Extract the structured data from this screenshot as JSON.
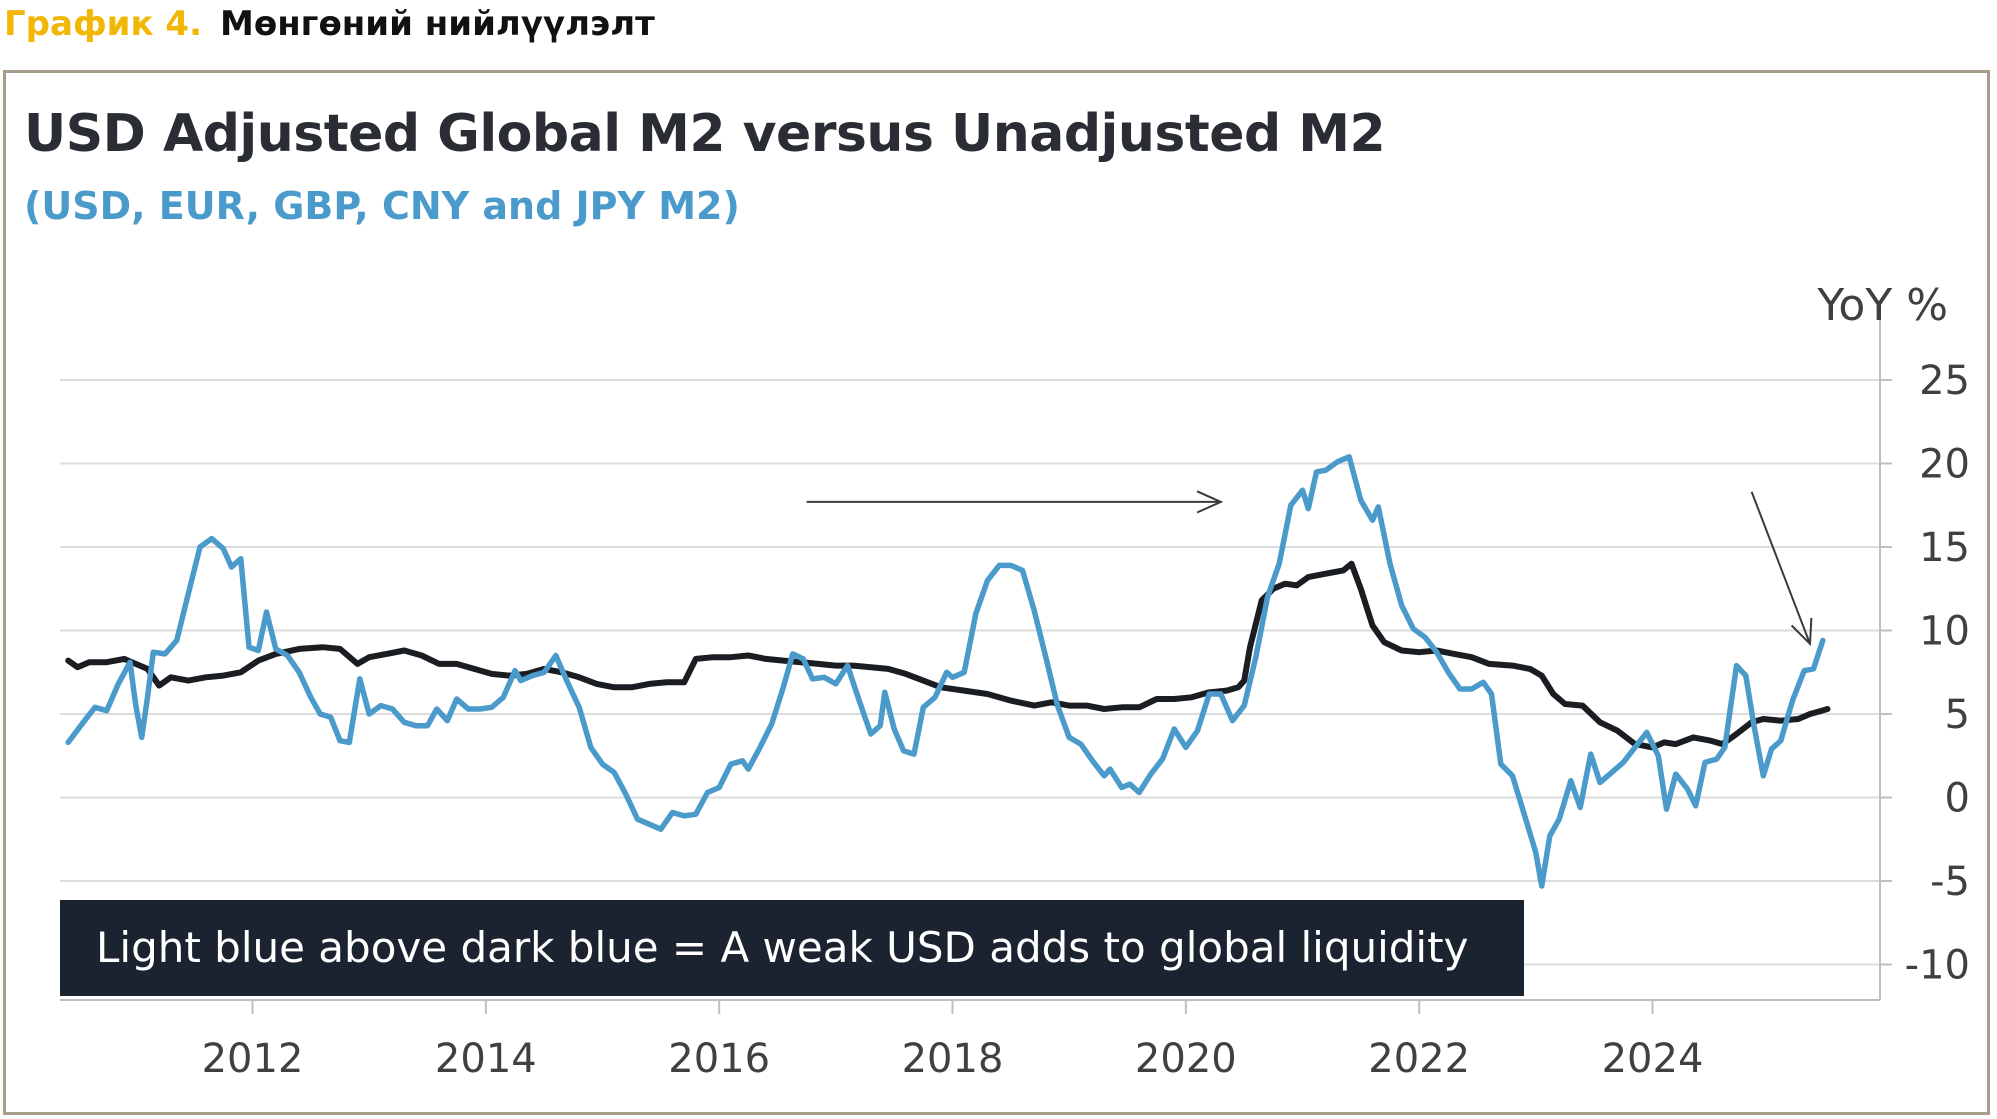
{
  "caption": {
    "label": "График 4.",
    "name": "Мөнгөний нийлүүлэлт"
  },
  "chart_data": {
    "type": "line",
    "title": "USD Adjusted Global M2 versus Unadjusted M2",
    "subtitle": "(USD, EUR, GBP, CNY and JPY M2)",
    "ylabel": "YoY %",
    "ylim": [
      -12,
      27
    ],
    "yticks": [
      25,
      20,
      15,
      10,
      5,
      0,
      -5,
      -10
    ],
    "xlim": [
      2010.35,
      2025.95
    ],
    "xticks": [
      2012,
      2014,
      2016,
      2018,
      2020,
      2022,
      2024
    ],
    "colors": {
      "unadjusted": "#1a1d22",
      "usd_adjusted": "#4a9acb",
      "grid": "#dcdcdc",
      "annotation": "#1b2330"
    },
    "annotation": "Light blue above dark blue = A weak USD adds to global liquidity",
    "series": [
      {
        "name": "USD Adjusted Global M2",
        "key": "usd_adjusted",
        "points": [
          [
            2010.42,
            3.3
          ],
          [
            2010.55,
            4.5
          ],
          [
            2010.65,
            5.4
          ],
          [
            2010.75,
            5.2
          ],
          [
            2010.85,
            6.8
          ],
          [
            2010.95,
            8.1
          ],
          [
            2011.0,
            5.5
          ],
          [
            2011.05,
            3.6
          ],
          [
            2011.1,
            6.0
          ],
          [
            2011.15,
            8.7
          ],
          [
            2011.25,
            8.6
          ],
          [
            2011.35,
            9.4
          ],
          [
            2011.45,
            12.2
          ],
          [
            2011.55,
            15.0
          ],
          [
            2011.65,
            15.5
          ],
          [
            2011.75,
            14.9
          ],
          [
            2011.82,
            13.8
          ],
          [
            2011.9,
            14.3
          ],
          [
            2011.97,
            9.0
          ],
          [
            2012.05,
            8.8
          ],
          [
            2012.12,
            11.1
          ],
          [
            2012.2,
            8.9
          ],
          [
            2012.3,
            8.5
          ],
          [
            2012.4,
            7.5
          ],
          [
            2012.5,
            6.0
          ],
          [
            2012.58,
            5.0
          ],
          [
            2012.67,
            4.8
          ],
          [
            2012.75,
            3.4
          ],
          [
            2012.83,
            3.3
          ],
          [
            2012.92,
            7.1
          ],
          [
            2013.0,
            5.0
          ],
          [
            2013.1,
            5.5
          ],
          [
            2013.2,
            5.3
          ],
          [
            2013.3,
            4.5
          ],
          [
            2013.4,
            4.3
          ],
          [
            2013.5,
            4.3
          ],
          [
            2013.58,
            5.3
          ],
          [
            2013.67,
            4.6
          ],
          [
            2013.75,
            5.9
          ],
          [
            2013.85,
            5.3
          ],
          [
            2013.95,
            5.3
          ],
          [
            2014.05,
            5.4
          ],
          [
            2014.15,
            6.0
          ],
          [
            2014.25,
            7.6
          ],
          [
            2014.3,
            7.0
          ],
          [
            2014.4,
            7.3
          ],
          [
            2014.5,
            7.5
          ],
          [
            2014.6,
            8.5
          ],
          [
            2014.7,
            6.9
          ],
          [
            2014.8,
            5.4
          ],
          [
            2014.9,
            3.0
          ],
          [
            2015.0,
            2.0
          ],
          [
            2015.1,
            1.5
          ],
          [
            2015.2,
            0.2
          ],
          [
            2015.3,
            -1.3
          ],
          [
            2015.4,
            -1.6
          ],
          [
            2015.5,
            -1.9
          ],
          [
            2015.6,
            -0.9
          ],
          [
            2015.7,
            -1.1
          ],
          [
            2015.8,
            -1.0
          ],
          [
            2015.9,
            0.3
          ],
          [
            2016.0,
            0.6
          ],
          [
            2016.1,
            2.0
          ],
          [
            2016.2,
            2.2
          ],
          [
            2016.25,
            1.7
          ],
          [
            2016.35,
            3.0
          ],
          [
            2016.45,
            4.4
          ],
          [
            2016.55,
            6.6
          ],
          [
            2016.63,
            8.6
          ],
          [
            2016.72,
            8.3
          ],
          [
            2016.8,
            7.1
          ],
          [
            2016.9,
            7.2
          ],
          [
            2017.0,
            6.8
          ],
          [
            2017.1,
            7.9
          ],
          [
            2017.2,
            5.8
          ],
          [
            2017.3,
            3.8
          ],
          [
            2017.38,
            4.3
          ],
          [
            2017.42,
            6.3
          ],
          [
            2017.5,
            4.1
          ],
          [
            2017.58,
            2.8
          ],
          [
            2017.67,
            2.6
          ],
          [
            2017.75,
            5.4
          ],
          [
            2017.85,
            6.0
          ],
          [
            2017.95,
            7.5
          ],
          [
            2018.0,
            7.2
          ],
          [
            2018.1,
            7.5
          ],
          [
            2018.2,
            11.0
          ],
          [
            2018.3,
            13.0
          ],
          [
            2018.4,
            13.9
          ],
          [
            2018.5,
            13.9
          ],
          [
            2018.6,
            13.6
          ],
          [
            2018.7,
            11.2
          ],
          [
            2018.8,
            8.4
          ],
          [
            2018.9,
            5.5
          ],
          [
            2019.0,
            3.6
          ],
          [
            2019.1,
            3.2
          ],
          [
            2019.2,
            2.2
          ],
          [
            2019.3,
            1.3
          ],
          [
            2019.35,
            1.7
          ],
          [
            2019.45,
            0.6
          ],
          [
            2019.52,
            0.8
          ],
          [
            2019.6,
            0.3
          ],
          [
            2019.7,
            1.4
          ],
          [
            2019.8,
            2.3
          ],
          [
            2019.9,
            4.1
          ],
          [
            2020.0,
            3.0
          ],
          [
            2020.1,
            4.0
          ],
          [
            2020.2,
            6.2
          ],
          [
            2020.3,
            6.2
          ],
          [
            2020.4,
            4.6
          ],
          [
            2020.5,
            5.5
          ],
          [
            2020.6,
            8.4
          ],
          [
            2020.7,
            12.0
          ],
          [
            2020.8,
            14.0
          ],
          [
            2020.9,
            17.5
          ],
          [
            2021.0,
            18.4
          ],
          [
            2021.05,
            17.3
          ],
          [
            2021.12,
            19.5
          ],
          [
            2021.2,
            19.6
          ],
          [
            2021.3,
            20.1
          ],
          [
            2021.4,
            20.4
          ],
          [
            2021.5,
            17.8
          ],
          [
            2021.6,
            16.6
          ],
          [
            2021.65,
            17.4
          ],
          [
            2021.75,
            14.0
          ],
          [
            2021.85,
            11.5
          ],
          [
            2021.95,
            10.1
          ],
          [
            2022.05,
            9.6
          ],
          [
            2022.15,
            8.7
          ],
          [
            2022.25,
            7.5
          ],
          [
            2022.35,
            6.5
          ],
          [
            2022.45,
            6.5
          ],
          [
            2022.55,
            6.9
          ],
          [
            2022.62,
            6.2
          ],
          [
            2022.7,
            2.0
          ],
          [
            2022.8,
            1.3
          ],
          [
            2022.9,
            -1.0
          ],
          [
            2023.0,
            -3.3
          ],
          [
            2023.05,
            -5.3
          ],
          [
            2023.12,
            -2.3
          ],
          [
            2023.2,
            -1.3
          ],
          [
            2023.3,
            1.0
          ],
          [
            2023.38,
            -0.6
          ],
          [
            2023.47,
            2.6
          ],
          [
            2023.55,
            0.9
          ],
          [
            2023.65,
            1.5
          ],
          [
            2023.75,
            2.1
          ],
          [
            2023.85,
            3.0
          ],
          [
            2023.95,
            3.9
          ],
          [
            2024.05,
            2.5
          ],
          [
            2024.12,
            -0.7
          ],
          [
            2024.2,
            1.4
          ],
          [
            2024.3,
            0.5
          ],
          [
            2024.37,
            -0.5
          ],
          [
            2024.45,
            2.1
          ],
          [
            2024.55,
            2.3
          ],
          [
            2024.62,
            3.0
          ],
          [
            2024.72,
            7.9
          ],
          [
            2024.8,
            7.3
          ],
          [
            2024.87,
            4.3
          ],
          [
            2024.95,
            1.3
          ],
          [
            2025.02,
            2.9
          ],
          [
            2025.1,
            3.4
          ],
          [
            2025.2,
            5.8
          ],
          [
            2025.3,
            7.6
          ],
          [
            2025.38,
            7.7
          ],
          [
            2025.46,
            9.4
          ]
        ]
      },
      {
        "name": "Unadjusted M2",
        "key": "unadjusted",
        "points": [
          [
            2010.42,
            8.2
          ],
          [
            2010.5,
            7.8
          ],
          [
            2010.6,
            8.1
          ],
          [
            2010.75,
            8.1
          ],
          [
            2010.9,
            8.3
          ],
          [
            2011.1,
            7.7
          ],
          [
            2011.2,
            6.7
          ],
          [
            2011.3,
            7.2
          ],
          [
            2011.45,
            7.0
          ],
          [
            2011.6,
            7.2
          ],
          [
            2011.75,
            7.3
          ],
          [
            2011.9,
            7.5
          ],
          [
            2012.05,
            8.2
          ],
          [
            2012.2,
            8.6
          ],
          [
            2012.4,
            8.9
          ],
          [
            2012.6,
            9.0
          ],
          [
            2012.75,
            8.9
          ],
          [
            2012.9,
            8.0
          ],
          [
            2013.0,
            8.4
          ],
          [
            2013.15,
            8.6
          ],
          [
            2013.3,
            8.8
          ],
          [
            2013.45,
            8.5
          ],
          [
            2013.6,
            8.0
          ],
          [
            2013.75,
            8.0
          ],
          [
            2013.9,
            7.7
          ],
          [
            2014.05,
            7.4
          ],
          [
            2014.2,
            7.3
          ],
          [
            2014.35,
            7.4
          ],
          [
            2014.5,
            7.7
          ],
          [
            2014.65,
            7.5
          ],
          [
            2014.8,
            7.2
          ],
          [
            2014.95,
            6.8
          ],
          [
            2015.1,
            6.6
          ],
          [
            2015.25,
            6.6
          ],
          [
            2015.4,
            6.8
          ],
          [
            2015.55,
            6.9
          ],
          [
            2015.7,
            6.9
          ],
          [
            2015.8,
            8.3
          ],
          [
            2015.95,
            8.4
          ],
          [
            2016.1,
            8.4
          ],
          [
            2016.25,
            8.5
          ],
          [
            2016.4,
            8.3
          ],
          [
            2016.55,
            8.2
          ],
          [
            2016.7,
            8.1
          ],
          [
            2016.85,
            8.0
          ],
          [
            2017.0,
            7.9
          ],
          [
            2017.15,
            7.9
          ],
          [
            2017.3,
            7.8
          ],
          [
            2017.45,
            7.7
          ],
          [
            2017.6,
            7.4
          ],
          [
            2017.75,
            7.0
          ],
          [
            2017.9,
            6.6
          ],
          [
            2018.1,
            6.4
          ],
          [
            2018.3,
            6.2
          ],
          [
            2018.5,
            5.8
          ],
          [
            2018.7,
            5.5
          ],
          [
            2018.85,
            5.7
          ],
          [
            2019.0,
            5.5
          ],
          [
            2019.15,
            5.5
          ],
          [
            2019.3,
            5.3
          ],
          [
            2019.45,
            5.4
          ],
          [
            2019.6,
            5.4
          ],
          [
            2019.75,
            5.9
          ],
          [
            2019.9,
            5.9
          ],
          [
            2020.05,
            6.0
          ],
          [
            2020.2,
            6.3
          ],
          [
            2020.35,
            6.4
          ],
          [
            2020.45,
            6.6
          ],
          [
            2020.5,
            7.0
          ],
          [
            2020.55,
            9.0
          ],
          [
            2020.65,
            11.8
          ],
          [
            2020.75,
            12.5
          ],
          [
            2020.85,
            12.8
          ],
          [
            2020.95,
            12.7
          ],
          [
            2021.05,
            13.2
          ],
          [
            2021.2,
            13.4
          ],
          [
            2021.35,
            13.6
          ],
          [
            2021.42,
            14.0
          ],
          [
            2021.5,
            12.5
          ],
          [
            2021.6,
            10.3
          ],
          [
            2021.7,
            9.3
          ],
          [
            2021.85,
            8.8
          ],
          [
            2022.0,
            8.7
          ],
          [
            2022.15,
            8.8
          ],
          [
            2022.3,
            8.6
          ],
          [
            2022.45,
            8.4
          ],
          [
            2022.6,
            8.0
          ],
          [
            2022.8,
            7.9
          ],
          [
            2022.95,
            7.7
          ],
          [
            2023.05,
            7.3
          ],
          [
            2023.15,
            6.2
          ],
          [
            2023.25,
            5.6
          ],
          [
            2023.4,
            5.5
          ],
          [
            2023.55,
            4.5
          ],
          [
            2023.7,
            4.0
          ],
          [
            2023.85,
            3.2
          ],
          [
            2024.0,
            3.0
          ],
          [
            2024.1,
            3.3
          ],
          [
            2024.2,
            3.2
          ],
          [
            2024.35,
            3.6
          ],
          [
            2024.5,
            3.4
          ],
          [
            2024.6,
            3.2
          ],
          [
            2024.7,
            3.7
          ],
          [
            2024.85,
            4.5
          ],
          [
            2024.95,
            4.7
          ],
          [
            2025.1,
            4.6
          ],
          [
            2025.25,
            4.7
          ],
          [
            2025.35,
            5.0
          ],
          [
            2025.45,
            5.2
          ],
          [
            2025.5,
            5.3
          ]
        ]
      }
    ],
    "arrows": [
      {
        "name": "arrow-horizontal",
        "from": [
          2016.75,
          17.7
        ],
        "to": [
          2020.3,
          17.7
        ]
      },
      {
        "name": "arrow-diagonal",
        "from": [
          2024.85,
          18.3
        ],
        "to": [
          2025.35,
          9.2
        ]
      }
    ]
  }
}
